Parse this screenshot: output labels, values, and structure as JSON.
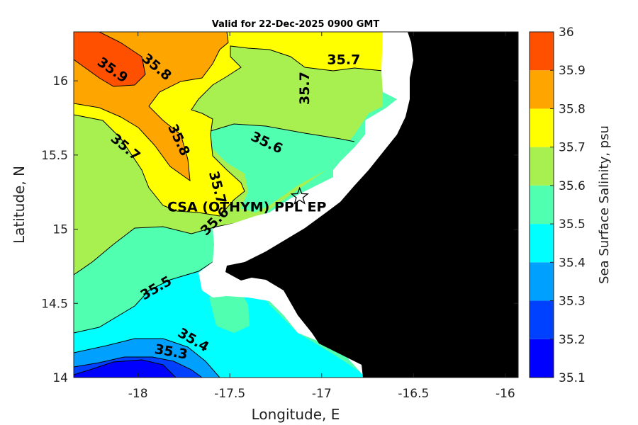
{
  "chart_data": {
    "type": "heatmap",
    "subtype": "filled-contour-map",
    "title": "Valid for 22-Dec-2025 0900 GMT",
    "xlabel": "Longitude, E",
    "ylabel": "Latitude, N",
    "xlim": [
      -18.35,
      -15.93
    ],
    "ylim": [
      14.0,
      16.33
    ],
    "xticks": [
      -18,
      -17.5,
      -17,
      -16.5,
      -16
    ],
    "xtick_labels": [
      "-18",
      "-17.5",
      "-17",
      "-16.5",
      "-16"
    ],
    "yticks": [
      14,
      14.5,
      15,
      15.5,
      16
    ],
    "ytick_labels": [
      "14",
      "14.5",
      "15",
      "15.5",
      "16"
    ],
    "colorbar": {
      "label": "Sea Surface Salinity, psu",
      "levels": [
        35.1,
        35.2,
        35.3,
        35.4,
        35.5,
        35.6,
        35.7,
        35.8,
        35.9,
        36.0
      ],
      "tick_labels": [
        "35.1",
        "35.2",
        "35.3",
        "35.4",
        "35.5",
        "35.6",
        "35.7",
        "35.8",
        "35.9",
        "36"
      ],
      "colors": [
        "#0000ff",
        "#0040ff",
        "#00a0ff",
        "#00ffff",
        "#50ffb0",
        "#a8f050",
        "#ffff00",
        "#ffa500",
        "#ff5000"
      ]
    },
    "land_color": "#000000",
    "nodata_color": "#ffffff",
    "contour_labels": [
      {
        "text": "35.9",
        "lon": -18.14,
        "lat": 16.07,
        "angle": 35
      },
      {
        "text": "35.8",
        "lon": -17.9,
        "lat": 16.09,
        "angle": 40
      },
      {
        "text": "35.7",
        "lon": -16.88,
        "lat": 16.14,
        "angle": 0
      },
      {
        "text": "35.7",
        "lon": -17.09,
        "lat": 15.95,
        "angle": -90
      },
      {
        "text": "35.7",
        "lon": -18.07,
        "lat": 15.55,
        "angle": 40
      },
      {
        "text": "35.8",
        "lon": -17.78,
        "lat": 15.6,
        "angle": 65
      },
      {
        "text": "35.6",
        "lon": -17.3,
        "lat": 15.58,
        "angle": 25
      },
      {
        "text": "35.7",
        "lon": -17.57,
        "lat": 15.28,
        "angle": 75
      },
      {
        "text": "35.6",
        "lon": -17.58,
        "lat": 15.05,
        "angle": -45
      },
      {
        "text": "35.5",
        "lon": -17.9,
        "lat": 14.6,
        "angle": -30
      },
      {
        "text": "35.4",
        "lon": -17.7,
        "lat": 14.25,
        "angle": 30
      },
      {
        "text": "35.3",
        "lon": -17.82,
        "lat": 14.17,
        "angle": 10
      }
    ],
    "station": {
      "name": "CSA (OTHYM) PPL EP",
      "lon": -17.12,
      "lat": 15.22,
      "marker": "star"
    }
  }
}
